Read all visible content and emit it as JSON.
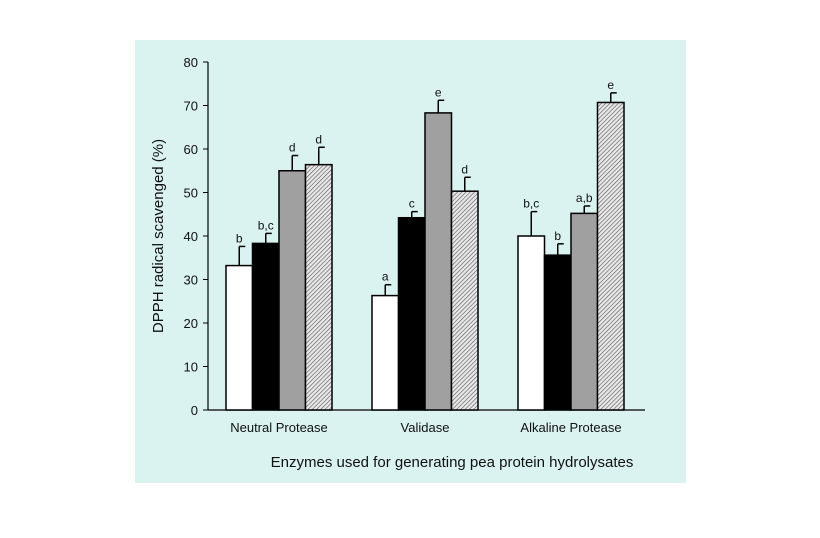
{
  "chart_data": {
    "type": "bar",
    "title": "",
    "xlabel": "Enzymes used for generating pea protein hydrolysates",
    "ylabel": "DPPH radical scavenged (%)",
    "ylim": [
      0,
      80
    ],
    "yticks": [
      0,
      10,
      20,
      30,
      40,
      50,
      60,
      70,
      80
    ],
    "categories": [
      "Neutral Protease",
      "Validase",
      "Alkaline Protease"
    ],
    "grid": false,
    "legend": "none",
    "series": [
      {
        "fill": "white",
        "color": "#ffffff",
        "values": [
          33.2,
          26.3,
          40.0
        ],
        "errors": [
          4.4,
          2.5,
          5.6
        ],
        "labels": [
          "b",
          "a",
          "b,c"
        ]
      },
      {
        "fill": "black",
        "color": "#000000",
        "values": [
          38.3,
          44.2,
          35.6
        ],
        "errors": [
          2.3,
          1.4,
          2.6
        ],
        "labels": [
          "b,c",
          "c",
          "b"
        ]
      },
      {
        "fill": "gray",
        "color": "#a0a0a0",
        "values": [
          55.0,
          68.3,
          45.2
        ],
        "errors": [
          3.5,
          2.9,
          1.7
        ],
        "labels": [
          "d",
          "e",
          "a,b"
        ]
      },
      {
        "fill": "hatched",
        "color": "#cfcfcf",
        "values": [
          56.4,
          50.3,
          70.7
        ],
        "errors": [
          4.0,
          3.2,
          2.2
        ],
        "labels": [
          "d",
          "d",
          "e"
        ]
      }
    ]
  }
}
